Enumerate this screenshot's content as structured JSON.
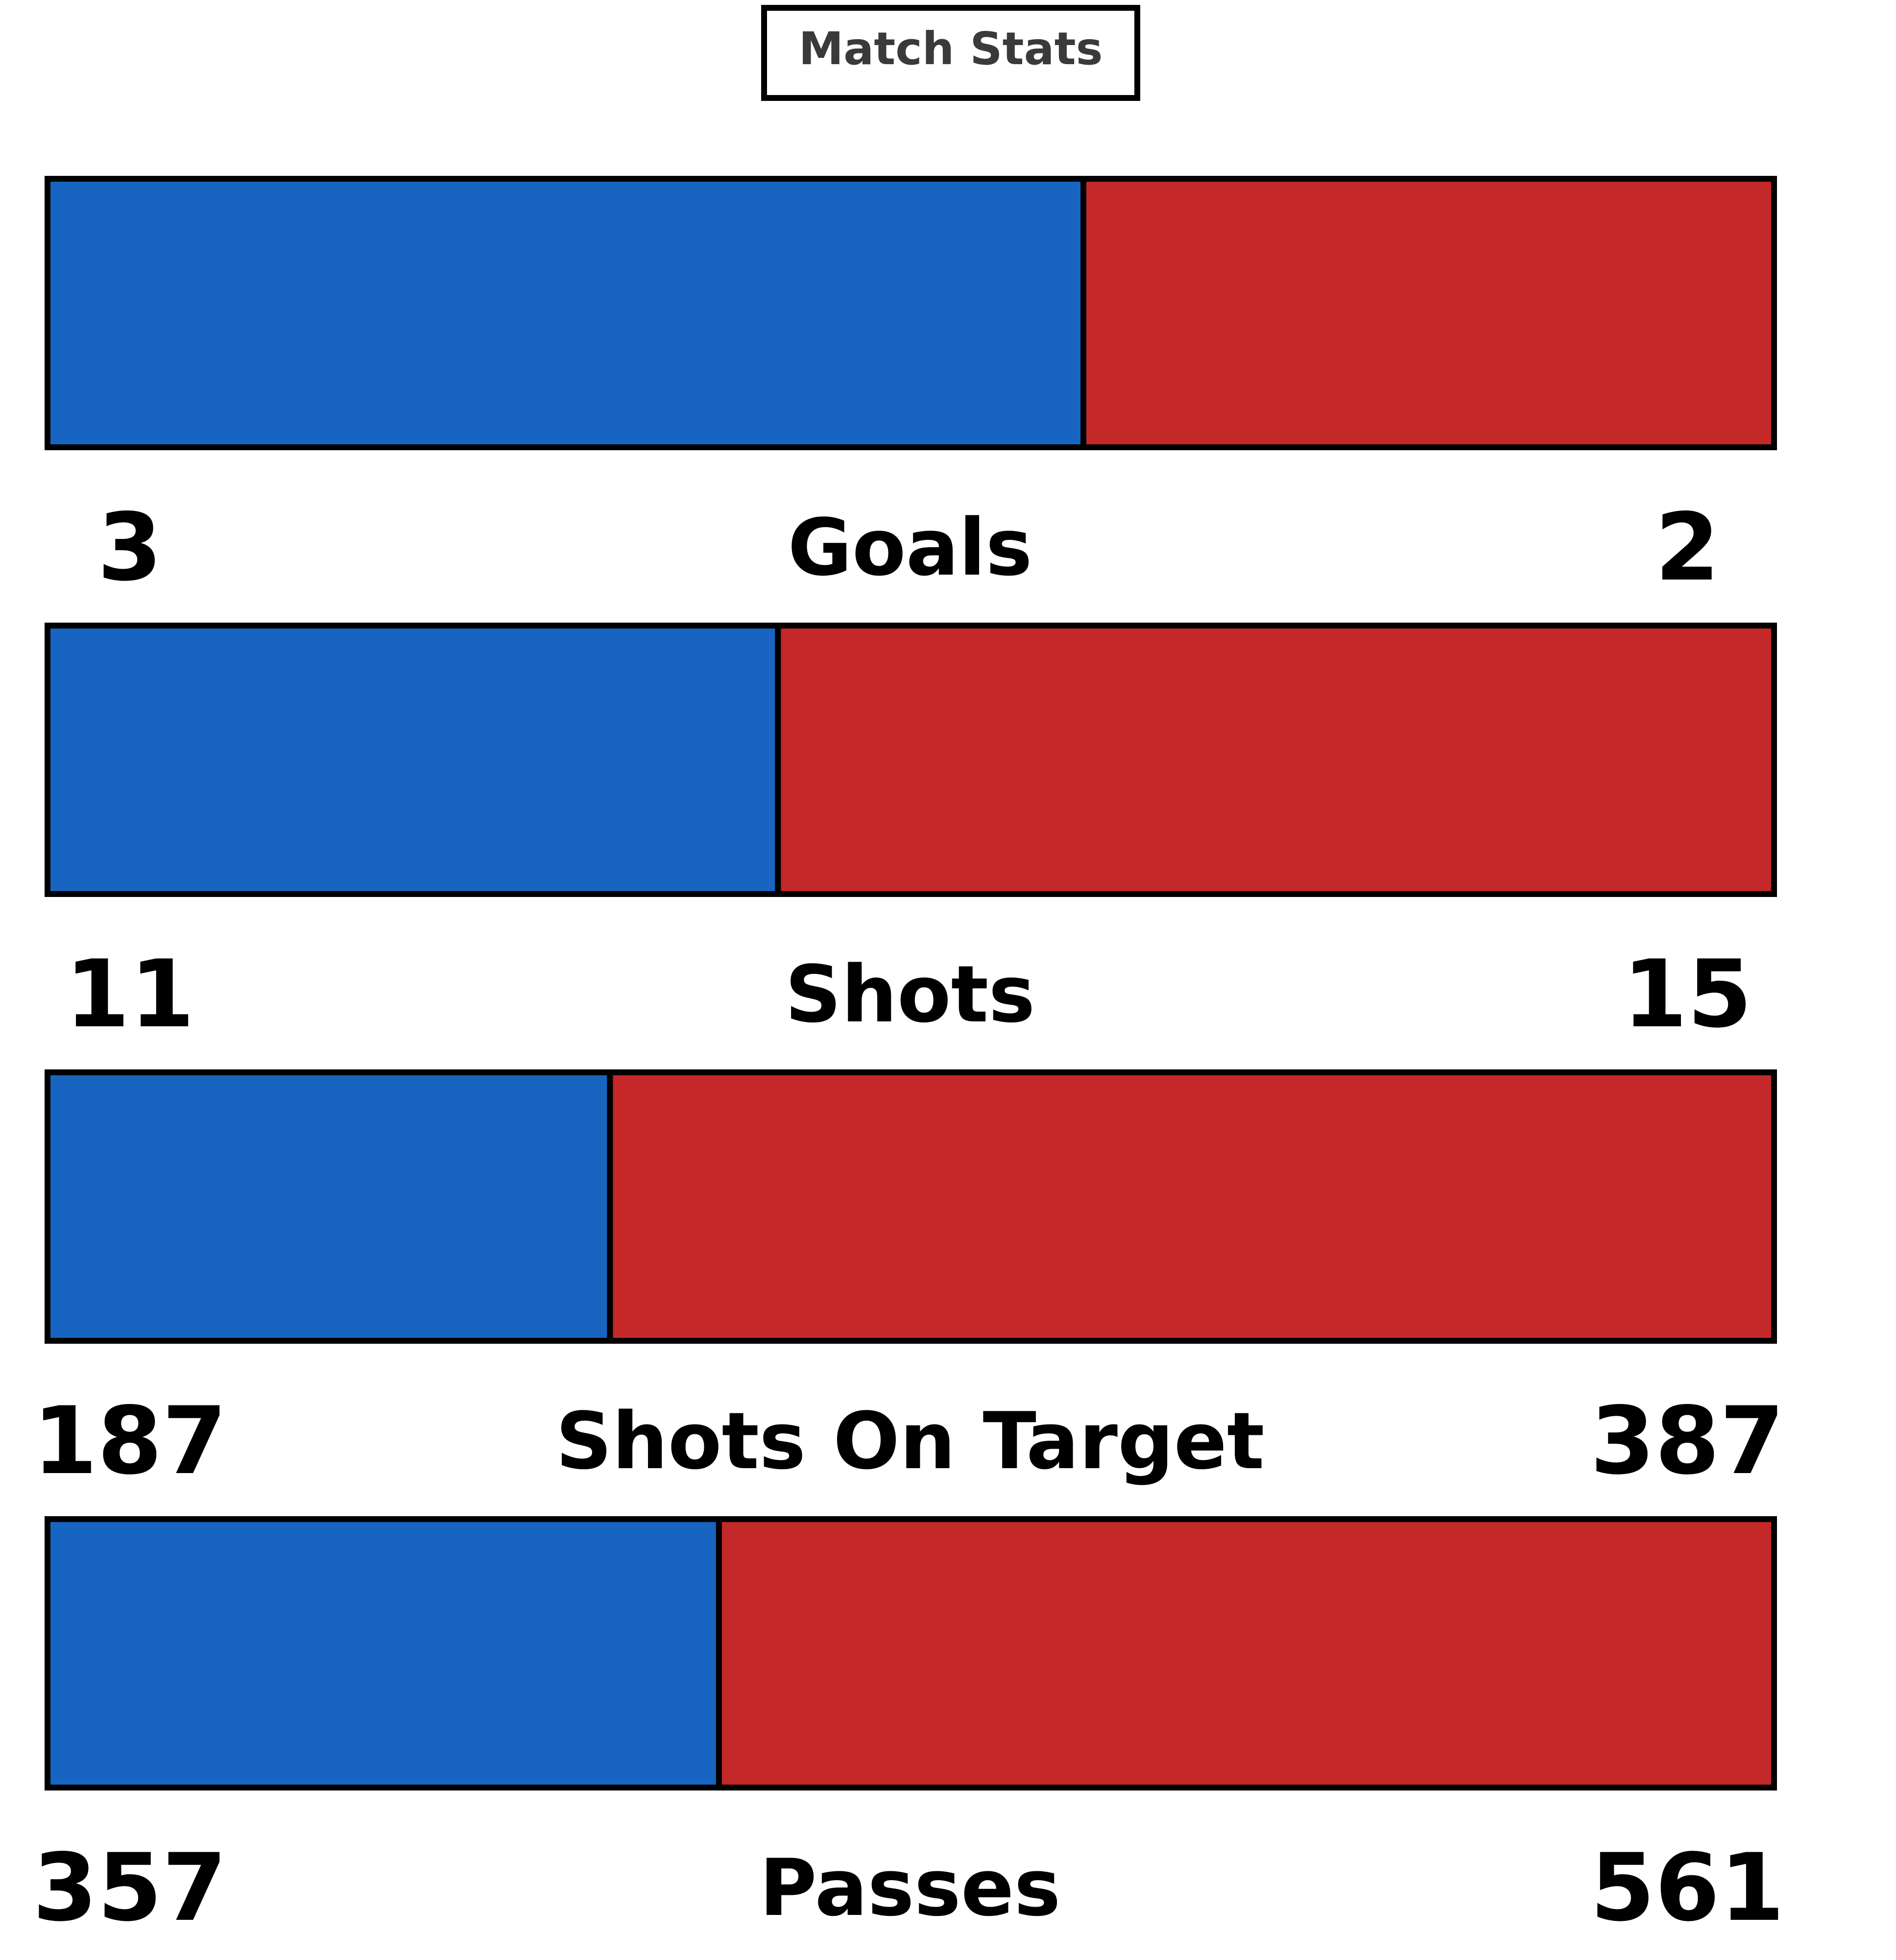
{
  "chart_data": {
    "type": "bar",
    "subtype": "stacked-horizontal-comparison",
    "title": "Match Stats",
    "categories": [
      "Goals",
      "Shots",
      "Shots On Target",
      "Passes"
    ],
    "series": [
      {
        "values": [
          3,
          11,
          187,
          357
        ],
        "color": "#1765c0"
      },
      {
        "values": [
          2,
          15,
          387,
          561
        ],
        "color": "#c42828"
      }
    ],
    "legend": "none",
    "grid": false
  }
}
